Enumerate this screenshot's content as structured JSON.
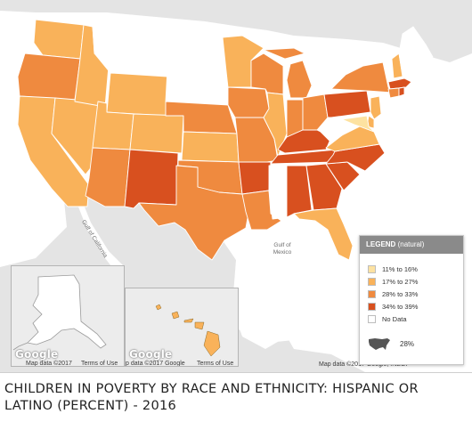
{
  "title": "CHILDREN IN POVERTY BY RACE AND ETHNICITY: HISPANIC OR LATINO (PERCENT) - 2016",
  "colors": {
    "range_11_16": "#fde2a1",
    "range_17_27": "#f9b25a",
    "range_28_33": "#ef8a3f",
    "range_34_39": "#d8501f",
    "no_data": "#ffffff",
    "land": "#e4e4e4",
    "water": "#ffffff"
  },
  "legend": {
    "title": "LEGEND",
    "subtitle": "(natural)",
    "items": [
      {
        "label": "11% to 16%",
        "color": "#fde2a1"
      },
      {
        "label": "17% to 27%",
        "color": "#f9b25a"
      },
      {
        "label": "28% to 33%",
        "color": "#ef8a3f"
      },
      {
        "label": "34% to 39%",
        "color": "#d8501f"
      },
      {
        "label": "No Data",
        "color": "#ffffff"
      }
    ],
    "us_value": "28%",
    "us_icon": "us-map-icon"
  },
  "map_labels": {
    "gulf_of_mexico": "Gulf of\nMexico",
    "gulf_of_california": "Gulf of California"
  },
  "attribution": {
    "main": "Map data ©2017",
    "main_full": "Map data ©2017 Google, INEGI",
    "terms": "Terms of Use",
    "hawaii_data": "p data ©2017 Google",
    "logo": "Google"
  },
  "states": {
    "WA": "range_17_27",
    "OR": "range_28_33",
    "CA": "range_17_27",
    "NV": "range_17_27",
    "ID": "range_17_27",
    "MT": "no_data",
    "WY": "range_17_27",
    "UT": "range_17_27",
    "AZ": "range_28_33",
    "CO": "range_17_27",
    "NM": "range_34_39",
    "TX": "range_28_33",
    "ND": "no_data",
    "SD": "no_data",
    "NE": "range_28_33",
    "KS": "range_17_27",
    "OK": "range_28_33",
    "MN": "range_17_27",
    "IA": "range_28_33",
    "MO": "range_28_33",
    "AR": "range_34_39",
    "LA": "range_28_33",
    "WI": "range_28_33",
    "IL": "range_17_27",
    "MI": "range_28_33",
    "IN": "range_28_33",
    "OH": "range_28_33",
    "KY": "range_34_39",
    "TN": "range_34_39",
    "MS": "no_data",
    "AL": "range_34_39",
    "GA": "range_34_39",
    "FL": "range_17_27",
    "SC": "range_34_39",
    "NC": "range_34_39",
    "VA": "range_17_27",
    "WV": "no_data",
    "PA": "range_34_39",
    "NY": "range_28_33",
    "VT": "no_data",
    "NH": "range_17_27",
    "ME": "no_data",
    "MA": "range_34_39",
    "CT": "range_28_33",
    "RI": "range_34_39",
    "NJ": "range_17_27",
    "DE": "range_17_27",
    "MD": "range_11_16",
    "AK": "no_data",
    "HI": "range_17_27"
  }
}
